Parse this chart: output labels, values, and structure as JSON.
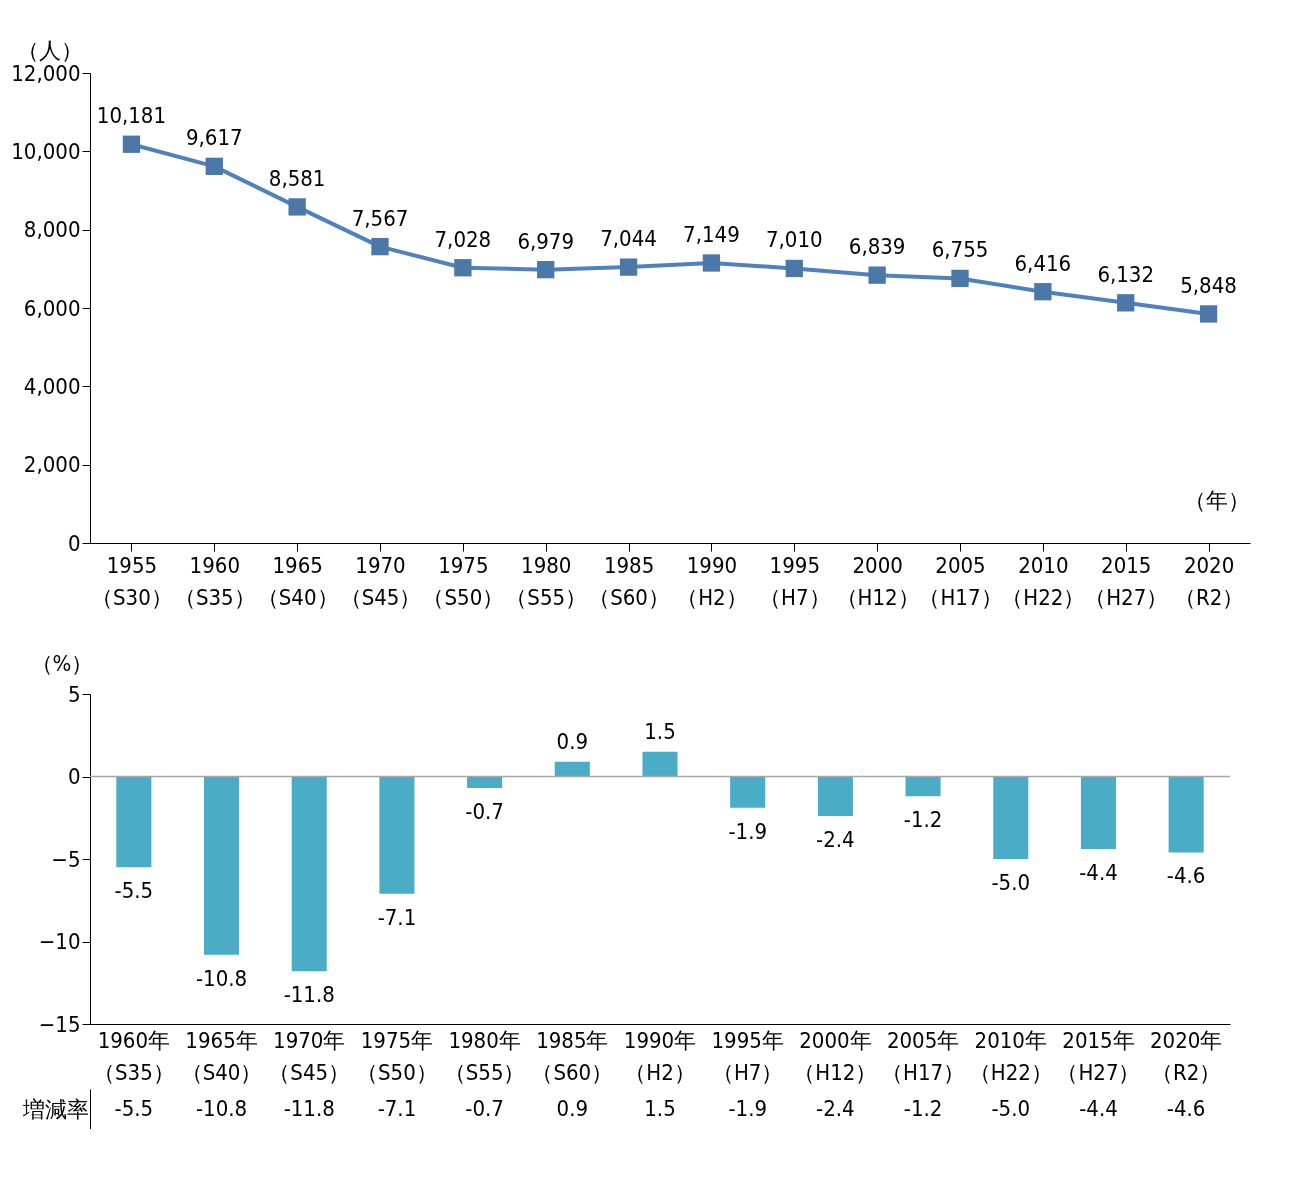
{
  "chart_data": [
    {
      "type": "line",
      "ylabel": "（人）",
      "xlabel": "（年）",
      "categories": [
        "1955（S30）",
        "1960（S35）",
        "1965（S40）",
        "1970（S45）",
        "1975（S50）",
        "1980（S55）",
        "1985（S60）",
        "1990（H2）",
        "1995（H7）",
        "2000（H12）",
        "2005（H17）",
        "2010（H22）",
        "2015（H27）",
        "2020（R2）"
      ],
      "series": [
        {
          "color": "#4f81bd",
          "values": [
            10181,
            9617,
            8581,
            7567,
            7028,
            6979,
            7044,
            7149,
            7010,
            6839,
            6755,
            6416,
            6132,
            5848
          ],
          "value_labels": [
            "10,181",
            "9,617",
            "8,581",
            "7,567",
            "7,028",
            "6,979",
            "7,044",
            "7,149",
            "7,010",
            "6,839",
            "6,755",
            "6,416",
            "6,132",
            "5,848"
          ]
        }
      ],
      "ylim": [
        0,
        12000
      ],
      "yticks": [
        0,
        {
          "value": 2000,
          "label": "2,000"
        },
        {
          "value": 4000,
          "label": "4,000"
        },
        {
          "value": 6000,
          "label": "6,000"
        },
        {
          "value": 8000,
          "label": "8,000"
        },
        {
          "value": 10000,
          "label": "10,000"
        },
        {
          "value": 12000,
          "label": "12,000"
        }
      ],
      "marker": "square"
    },
    {
      "type": "bar",
      "ylabel": "（%）",
      "annotations": [
        "増減率"
      ],
      "categories": [
        "1960年（S35）",
        "1965年（S40）",
        "1970年（S45）",
        "1975年（S50）",
        "1980年（S55）",
        "1985年（S60）",
        "1990年（H2）",
        "1995年（H7）",
        "2000年（H12）",
        "2005年（H17）",
        "2010年（H22）",
        "2015年（H27）",
        "2020年（R2）"
      ],
      "series": [
        {
          "color": "#4bacc6",
          "values": [
            -5.5,
            -10.8,
            -11.8,
            -7.1,
            -0.7,
            0.9,
            1.5,
            -1.9,
            -2.4,
            -1.2,
            -5.0,
            -4.4,
            -4.6
          ],
          "value_labels": [
            "-5.5",
            "-10.8",
            "-11.8",
            "-7.1",
            "-0.7",
            "0.9",
            "1.5",
            "-1.9",
            "-2.4",
            "-1.2",
            "-5.0",
            "-4.4",
            "-4.6"
          ]
        }
      ],
      "ylim": [
        -15,
        5
      ],
      "yticks": [
        -15,
        -10,
        -5,
        0,
        5
      ],
      "ref_lines": [
        {
          "axis": "y",
          "value": 0,
          "color": "#a6a6a6"
        }
      ]
    }
  ]
}
